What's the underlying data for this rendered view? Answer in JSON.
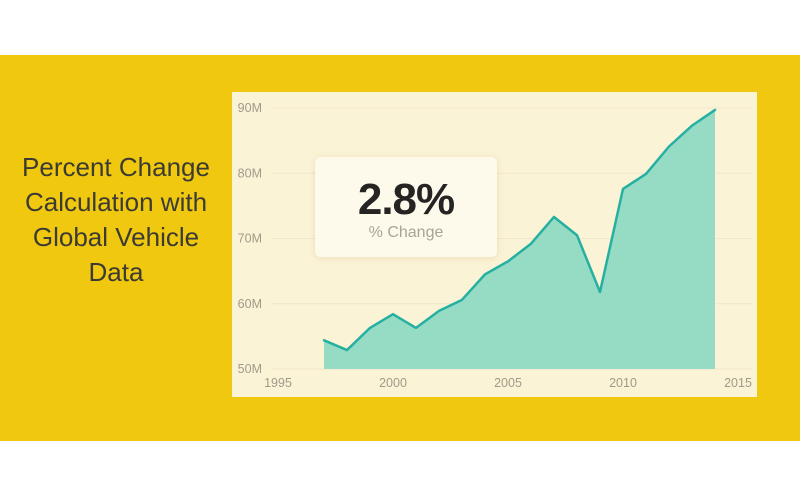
{
  "colors": {
    "page_bg": "#FFFFFF",
    "band": "#F0C80F",
    "panel": "#FBF3D6",
    "card": "#FDF9EB",
    "title_text": "#3C3B33",
    "card_value_text": "#252423",
    "card_label_text": "#A9A49A"
  },
  "title": {
    "lines": [
      "Percent Change",
      "Calculation with",
      "Global Vehicle",
      "Data"
    ],
    "full_text": "Percent Change Calculation with Global Vehicle Data"
  },
  "callout": {
    "value": "2.8%",
    "label": "% Change"
  },
  "chart_data": {
    "type": "area",
    "title": "",
    "xlabel": "",
    "ylabel": "",
    "y_unit": "M",
    "x": [
      1997,
      1998,
      1999,
      2000,
      2001,
      2002,
      2003,
      2004,
      2005,
      2006,
      2007,
      2008,
      2009,
      2010,
      2011,
      2012,
      2013,
      2014
    ],
    "values": [
      54.4,
      52.9,
      56.3,
      58.4,
      56.3,
      58.9,
      60.6,
      64.5,
      66.5,
      69.2,
      73.3,
      70.5,
      61.8,
      77.6,
      79.9,
      84.1,
      87.3,
      89.7
    ],
    "x_ticks": [
      1995,
      2000,
      2005,
      2010,
      2015
    ],
    "y_tick_labels": [
      "90M",
      "80M",
      "70M",
      "60M",
      "50M"
    ],
    "y_tick_values": [
      90,
      80,
      70,
      60,
      50
    ],
    "ylim": [
      50,
      90
    ],
    "xlim": [
      1994.7,
      2015.7
    ],
    "grid": true,
    "legend": false,
    "line_color": "#26B0A2",
    "fill_color": "#96DCC5",
    "gridline_color": "#EFE6CD",
    "axis_label_color": "#A19A89"
  }
}
